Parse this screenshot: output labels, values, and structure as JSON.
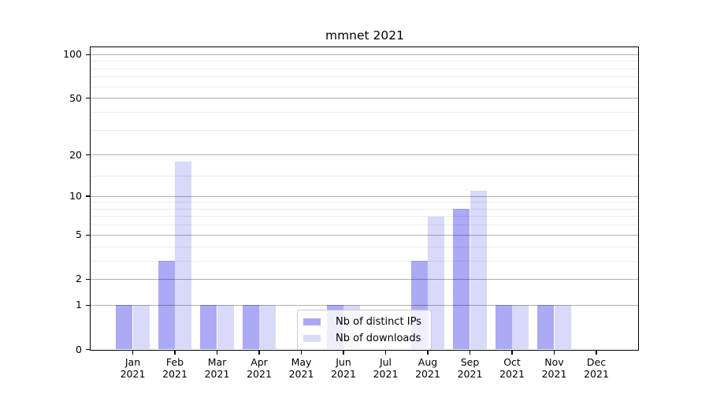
{
  "figure": {
    "title": "mmnet 2021",
    "background_color": "#ffffff"
  },
  "chart_data": {
    "type": "bar",
    "title": "mmnet 2021",
    "categories": [
      "Jan",
      "Feb",
      "Mar",
      "Apr",
      "May",
      "Jun",
      "Jul",
      "Aug",
      "Sep",
      "Oct",
      "Nov",
      "Dec"
    ],
    "year_label": "2021",
    "series": [
      {
        "name": "Nb of distinct IPs",
        "key": "distinct-ips",
        "color": "#aaaaf5",
        "values": [
          1,
          3,
          1,
          1,
          0,
          1,
          0,
          3,
          8,
          1,
          1,
          0
        ]
      },
      {
        "name": "Nb of downloads",
        "key": "downloads",
        "color": "#d9d9fa",
        "values": [
          1,
          18,
          1,
          1,
          0,
          1,
          0,
          7,
          11,
          1,
          1,
          0
        ]
      }
    ],
    "xlabel": "",
    "ylabel": "",
    "y_axis": {
      "scale": "log10(value+1)",
      "ticks": [
        0,
        1,
        2,
        5,
        10,
        20,
        50,
        100
      ],
      "minor_ticks": [
        3,
        4,
        6,
        7,
        8,
        9,
        14,
        30,
        40,
        60,
        70,
        80,
        90
      ],
      "min": 0,
      "max": 113
    },
    "grid": true,
    "legend": {
      "position": "lower-center",
      "entries": [
        "Nb of distinct IPs",
        "Nb of downloads"
      ]
    }
  }
}
